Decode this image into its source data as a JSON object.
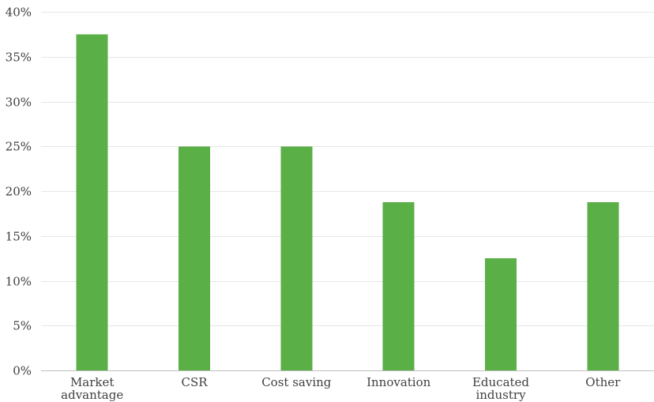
{
  "chart_data": {
    "type": "bar",
    "categories": [
      "Market advantage",
      "CSR",
      "Cost saving",
      "Innovation",
      "Educated industry",
      "Other"
    ],
    "category_lines": [
      [
        "Market",
        "advantage"
      ],
      [
        "CSR"
      ],
      [
        "Cost saving"
      ],
      [
        "Innovation"
      ],
      [
        "Educated",
        "industry"
      ],
      [
        "Other"
      ]
    ],
    "values": [
      37.5,
      25,
      25,
      18.75,
      12.5,
      18.75
    ],
    "value_format": "percent",
    "title": "",
    "xlabel": "",
    "ylabel": "",
    "ylim": [
      0,
      40
    ],
    "yticks": [
      0,
      5,
      10,
      15,
      20,
      25,
      30,
      35,
      40
    ],
    "ytick_labels": [
      "0%",
      "5%",
      "10%",
      "15%",
      "20%",
      "25%",
      "30%",
      "35%",
      "40%"
    ],
    "grid": true,
    "legend": "none",
    "bar_color": "#5aaf47"
  }
}
